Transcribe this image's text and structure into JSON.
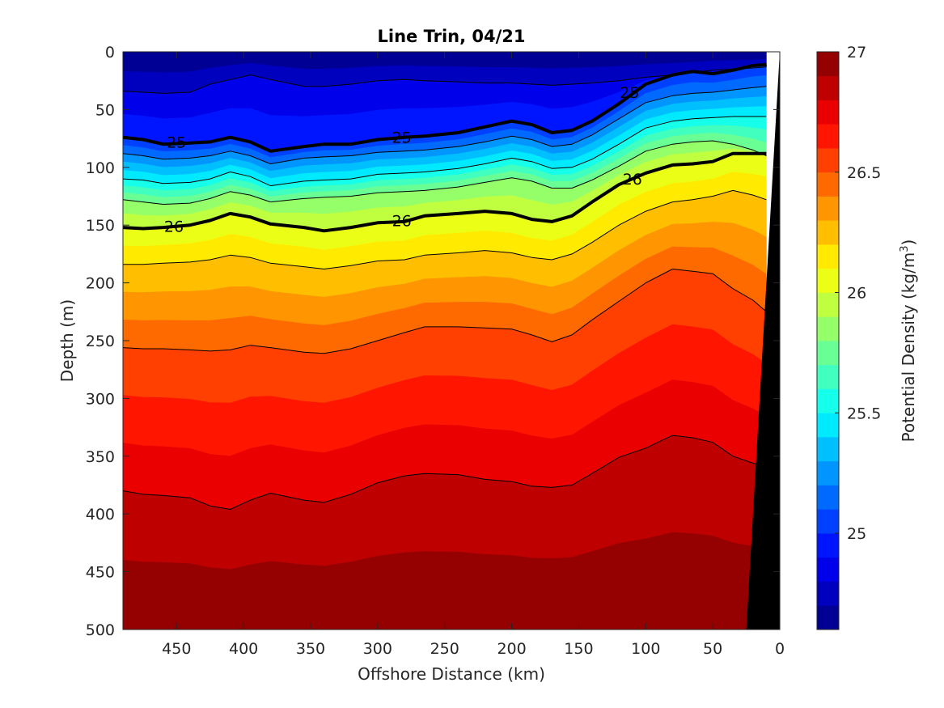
{
  "chart_data": {
    "type": "contour",
    "title": "Line Trin, 04/21",
    "xlabel": "Offshore Distance (km)",
    "ylabel": "Depth (m)",
    "colorbar_label": "Potential Density (kg/m",
    "colorbar_label_sup": "3",
    "colorbar_label_tail": ")",
    "xlim": [
      490,
      0
    ],
    "ylim": [
      500,
      0
    ],
    "x_reversed": true,
    "y_reversed": true,
    "x_ticks": [
      "450",
      "400",
      "350",
      "300",
      "250",
      "200",
      "150",
      "100",
      "50",
      "0"
    ],
    "y_ticks": [
      "0",
      "50",
      "100",
      "150",
      "200",
      "250",
      "300",
      "350",
      "400",
      "450",
      "500"
    ],
    "colorbar": {
      "range": [
        24.6,
        27.0
      ],
      "levels_step": 0.1,
      "ticks": [
        "25",
        "25.5",
        "26",
        "26.5",
        "27"
      ],
      "colormap": "jet"
    },
    "x": [
      490,
      475,
      460,
      440,
      425,
      410,
      395,
      380,
      355,
      340,
      320,
      300,
      280,
      265,
      240,
      220,
      200,
      185,
      170,
      155,
      140,
      120,
      100,
      80,
      65,
      50,
      35,
      20,
      10
    ],
    "isopycnals": [
      {
        "level": "24.8",
        "depth": [
          34,
          35,
          36,
          35,
          28,
          24,
          20,
          24,
          30,
          30,
          28,
          25,
          24,
          25,
          26,
          27,
          27,
          28,
          29,
          28,
          27,
          25,
          22,
          20,
          18,
          16,
          15,
          14,
          13
        ],
        "bold": false,
        "label": ""
      },
      {
        "level": "25",
        "depth": [
          74,
          76,
          80,
          79,
          78,
          74,
          78,
          86,
          82,
          80,
          80,
          76,
          74,
          73,
          70,
          65,
          60,
          63,
          70,
          68,
          60,
          45,
          28,
          20,
          17,
          19,
          16,
          12,
          11
        ],
        "bold": true,
        "label": "25"
      },
      {
        "level": "25.2",
        "depth": [
          88,
          90,
          93,
          92,
          90,
          86,
          90,
          97,
          92,
          91,
          90,
          87,
          86,
          85,
          82,
          78,
          73,
          76,
          82,
          80,
          72,
          58,
          44,
          38,
          36,
          35,
          33,
          31,
          30
        ]
      },
      {
        "level": "25.5",
        "depth": [
          110,
          111,
          114,
          113,
          110,
          104,
          108,
          116,
          112,
          111,
          110,
          106,
          105,
          104,
          101,
          97,
          92,
          95,
          101,
          100,
          93,
          80,
          66,
          60,
          58,
          57,
          56,
          56,
          56
        ],
        "bold": false,
        "label": ""
      },
      {
        "level": "25.8",
        "depth": [
          128,
          130,
          132,
          131,
          127,
          121,
          124,
          130,
          127,
          126,
          125,
          122,
          121,
          120,
          117,
          113,
          109,
          112,
          118,
          118,
          111,
          99,
          86,
          80,
          78,
          77,
          80,
          85,
          90
        ],
        "bold": false,
        "label": ""
      },
      {
        "level": "26",
        "depth": [
          152,
          153,
          152,
          150,
          146,
          140,
          143,
          149,
          152,
          155,
          152,
          148,
          147,
          142,
          140,
          138,
          140,
          145,
          147,
          142,
          130,
          115,
          105,
          98,
          97,
          95,
          88,
          88,
          88
        ],
        "bold": true,
        "label": "26"
      },
      {
        "level": "26.2",
        "depth": [
          184,
          184,
          183,
          182,
          180,
          176,
          178,
          183,
          186,
          188,
          185,
          181,
          180,
          176,
          174,
          172,
          174,
          178,
          180,
          175,
          165,
          150,
          138,
          130,
          128,
          125,
          120,
          124,
          128
        ],
        "bold": false,
        "label": ""
      },
      {
        "level": "26.5",
        "depth": [
          256,
          257,
          257,
          258,
          259,
          258,
          254,
          256,
          260,
          261,
          257,
          250,
          243,
          238,
          238,
          239,
          240,
          245,
          251,
          245,
          232,
          216,
          200,
          188,
          190,
          192,
          205,
          215,
          225
        ],
        "bold": false,
        "label": ""
      },
      {
        "level": "26.8",
        "depth": [
          380,
          383,
          384,
          386,
          393,
          396,
          388,
          382,
          388,
          390,
          383,
          373,
          367,
          365,
          366,
          370,
          372,
          376,
          377,
          375,
          365,
          351,
          343,
          332,
          334,
          338,
          350,
          356,
          360
        ],
        "bold": false,
        "label": ""
      }
    ],
    "labels": [
      {
        "text": "25",
        "x": 450,
        "depth": 78
      },
      {
        "text": "25",
        "x": 282,
        "depth": 74
      },
      {
        "text": "25",
        "x": 112,
        "depth": 35
      },
      {
        "text": "26",
        "x": 452,
        "depth": 151
      },
      {
        "text": "26",
        "x": 282,
        "depth": 146
      },
      {
        "text": "26",
        "x": 110,
        "depth": 110
      }
    ],
    "bathymetry": [
      [
        0,
        0
      ],
      [
        25,
        500
      ],
      [
        0,
        500
      ]
    ]
  }
}
